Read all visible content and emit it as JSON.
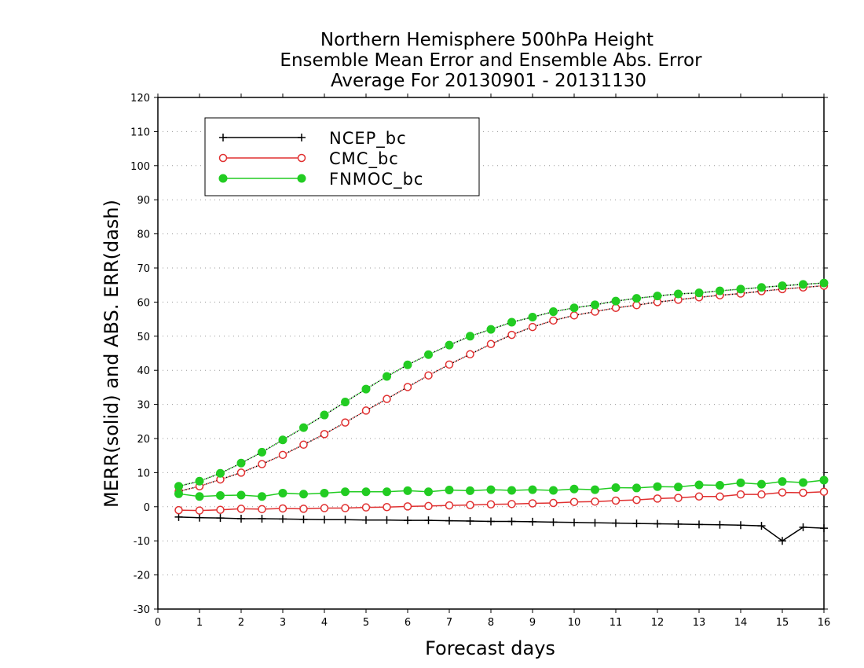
{
  "chart_data": {
    "type": "line",
    "title": [
      "Northern Hemisphere 500hPa Height",
      "Ensemble Mean Error and Ensemble Abs. Error",
      "Average For 20130901 - 20131130"
    ],
    "xlabel": "Forecast days",
    "ylabel": "MERR(solid) and ABS. ERR(dash)",
    "xlim": [
      0,
      16
    ],
    "ylim": [
      -30,
      120
    ],
    "xticks": [
      0,
      1,
      2,
      3,
      4,
      5,
      6,
      7,
      8,
      9,
      10,
      11,
      12,
      13,
      14,
      15,
      16
    ],
    "yticks": [
      -30,
      -20,
      -10,
      0,
      10,
      20,
      30,
      40,
      50,
      60,
      70,
      80,
      90,
      100,
      110,
      120
    ],
    "grid": "horizontal dotted",
    "legend_position": "top-left",
    "x": [
      0.5,
      1,
      1.5,
      2,
      2.5,
      3,
      3.5,
      4,
      4.5,
      5,
      5.5,
      6,
      6.5,
      7,
      7.5,
      8,
      8.5,
      9,
      9.5,
      10,
      10.5,
      11,
      11.5,
      12,
      12.5,
      13,
      13.5,
      14,
      14.5,
      15,
      15.5,
      16
    ],
    "series": [
      {
        "name": "NCEP_bc",
        "color": "#000000",
        "marker": "plus",
        "merr": [
          -3,
          -3.2,
          -3.3,
          -3.5,
          -3.5,
          -3.6,
          -3.7,
          -3.8,
          -3.8,
          -3.9,
          -3.9,
          -4,
          -4,
          -4.1,
          -4.2,
          -4.3,
          -4.3,
          -4.4,
          -4.5,
          -4.6,
          -4.7,
          -4.8,
          -4.9,
          -5,
          -5.1,
          -5.2,
          -5.3,
          -5.4,
          -5.6,
          -10,
          -6,
          -6.3
        ],
        "abs_err": null
      },
      {
        "name": "CMC_bc",
        "color": "#e03030",
        "marker": "open-circle",
        "merr": [
          -1,
          -1.1,
          -0.9,
          -0.6,
          -0.7,
          -0.5,
          -0.6,
          -0.4,
          -0.4,
          -0.2,
          -0.1,
          0.1,
          0.2,
          0.4,
          0.5,
          0.7,
          0.8,
          1,
          1.1,
          1.4,
          1.5,
          1.8,
          2,
          2.4,
          2.6,
          3,
          3,
          3.6,
          3.6,
          4.2,
          4.1,
          4.4
        ],
        "abs_err": [
          4.5,
          6,
          8,
          10,
          12.5,
          15.2,
          18.2,
          21.3,
          24.7,
          28.2,
          31.6,
          35.1,
          38.5,
          41.7,
          44.7,
          47.7,
          50.4,
          52.7,
          54.6,
          56.1,
          57.2,
          58.3,
          59.1,
          60,
          60.7,
          61.4,
          62,
          62.5,
          63.2,
          63.8,
          64.3,
          64.8
        ]
      },
      {
        "name": "FNMOC_bc",
        "color": "#22cc22",
        "marker": "filled-circle",
        "merr": [
          3.8,
          3,
          3.3,
          3.4,
          3,
          4,
          3.7,
          4,
          4.4,
          4.4,
          4.4,
          4.7,
          4.4,
          4.9,
          4.7,
          5,
          4.8,
          5,
          4.8,
          5.2,
          5,
          5.6,
          5.5,
          5.9,
          5.8,
          6.4,
          6.3,
          7,
          6.6,
          7.4,
          7.1,
          7.8
        ],
        "abs_err": [
          6,
          7.5,
          9.8,
          12.8,
          16,
          19.6,
          23.2,
          26.9,
          30.7,
          34.5,
          38.2,
          41.6,
          44.6,
          47.4,
          50,
          52,
          54.1,
          55.6,
          57.2,
          58.3,
          59.2,
          60.3,
          61.1,
          61.8,
          62.4,
          62.7,
          63.3,
          63.8,
          64.3,
          64.8,
          65.2,
          65.6
        ]
      }
    ]
  }
}
